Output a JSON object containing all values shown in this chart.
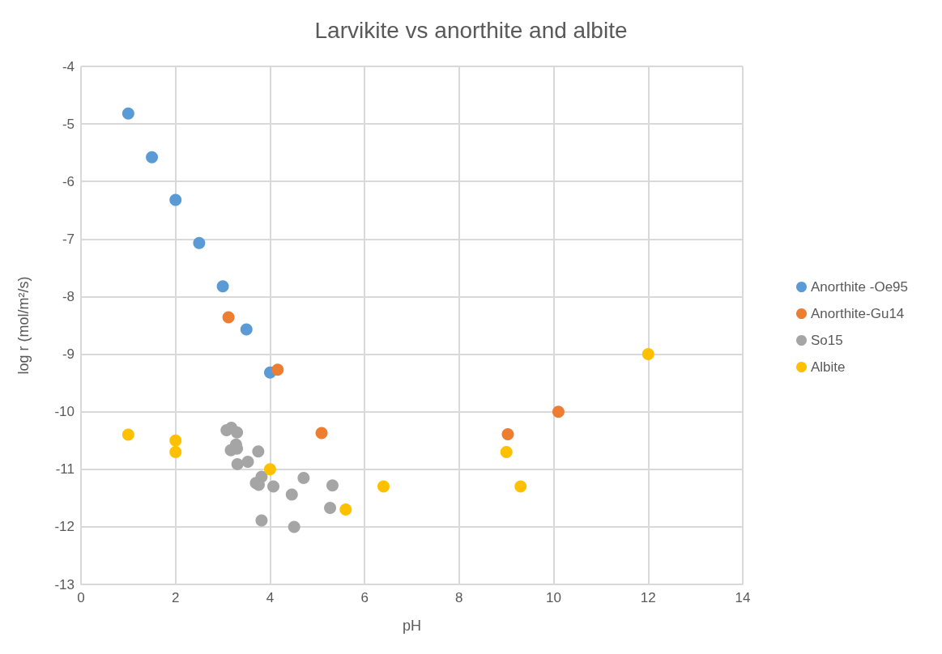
{
  "chart_data": {
    "type": "scatter",
    "title": "Larvikite vs anorthite and albite",
    "xlabel": "pH",
    "ylabel": "log r (mol/m²/s)",
    "xlim": [
      0,
      14
    ],
    "xticks": [
      0,
      2,
      4,
      6,
      8,
      10,
      12,
      14
    ],
    "ylim": [
      -13,
      -4
    ],
    "yticks": [
      -13,
      -12,
      -11,
      -10,
      -9,
      -8,
      -7,
      -6,
      -5,
      -4
    ],
    "grid": true,
    "legend": "right",
    "marker": "circle",
    "series": [
      {
        "name": "Anorthite -Oe95",
        "color": "#5b9bd5",
        "x": [
          1,
          1.5,
          2,
          2.5,
          3,
          3.5,
          4
        ],
        "values": [
          -4.82,
          -5.58,
          -6.32,
          -7.07,
          -7.82,
          -8.57,
          -9.32
        ]
      },
      {
        "name": "Anorthite-Gu14",
        "color": "#ed7d31",
        "x": [
          3.12,
          4.16,
          5.09,
          9.03,
          10.1
        ],
        "values": [
          -8.36,
          -9.27,
          -10.37,
          -10.39,
          -10.0
        ]
      },
      {
        "name": "So15",
        "color": "#a5a5a5",
        "x": [
          3.08,
          3.18,
          3.3,
          3.28,
          3.17,
          3.3,
          3.75,
          3.31,
          3.53,
          3.82,
          3.7,
          3.76,
          4.07,
          4.46,
          4.71,
          5.32,
          5.27,
          3.82,
          4.51
        ],
        "values": [
          -10.32,
          -10.28,
          -10.36,
          -10.57,
          -10.67,
          -10.64,
          -10.69,
          -10.91,
          -10.87,
          -11.13,
          -11.24,
          -11.27,
          -11.3,
          -11.44,
          -11.15,
          -11.28,
          -11.67,
          -11.89,
          -12.0
        ]
      },
      {
        "name": "Albite",
        "color": "#ffc000",
        "x": [
          1,
          2,
          2,
          4,
          5.6,
          6.4,
          9,
          9.3,
          12
        ],
        "values": [
          -10.4,
          -10.5,
          -10.7,
          -11.0,
          -11.7,
          -11.3,
          -10.7,
          -11.3,
          -9.0
        ]
      }
    ]
  }
}
